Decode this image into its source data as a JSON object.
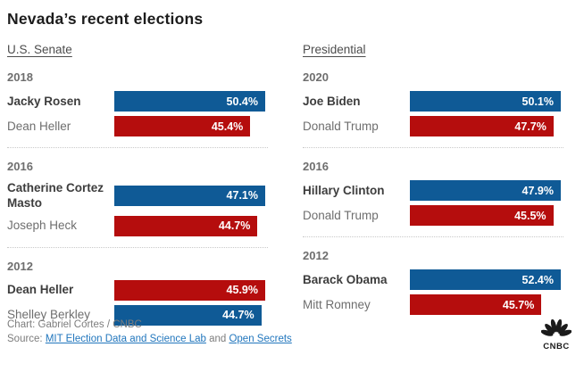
{
  "title": "Nevada’s recent elections",
  "colors": {
    "dem": "#0f5a96",
    "rep": "#b50d0d"
  },
  "columns": [
    {
      "header": "U.S. Senate",
      "races": [
        {
          "year": "2018",
          "candidates": [
            {
              "name": "Jacky Rosen",
              "value": 50.4,
              "label": "50.4%",
              "party": "dem",
              "winner": true
            },
            {
              "name": "Dean Heller",
              "value": 45.4,
              "label": "45.4%",
              "party": "rep",
              "winner": false
            }
          ]
        },
        {
          "year": "2016",
          "candidates": [
            {
              "name": "Catherine Cortez Masto",
              "value": 47.1,
              "label": "47.1%",
              "party": "dem",
              "winner": true
            },
            {
              "name": "Joseph Heck",
              "value": 44.7,
              "label": "44.7%",
              "party": "rep",
              "winner": false
            }
          ]
        },
        {
          "year": "2012",
          "candidates": [
            {
              "name": "Dean Heller",
              "value": 45.9,
              "label": "45.9%",
              "party": "rep",
              "winner": true
            },
            {
              "name": "Shelley Berkley",
              "value": 44.7,
              "label": "44.7%",
              "party": "dem",
              "winner": false
            }
          ]
        }
      ]
    },
    {
      "header": "Presidential",
      "races": [
        {
          "year": "2020",
          "candidates": [
            {
              "name": "Joe Biden",
              "value": 50.1,
              "label": "50.1%",
              "party": "dem",
              "winner": true
            },
            {
              "name": "Donald Trump",
              "value": 47.7,
              "label": "47.7%",
              "party": "rep",
              "winner": false
            }
          ]
        },
        {
          "year": "2016",
          "candidates": [
            {
              "name": "Hillary Clinton",
              "value": 47.9,
              "label": "47.9%",
              "party": "dem",
              "winner": true
            },
            {
              "name": "Donald Trump",
              "value": 45.5,
              "label": "45.5%",
              "party": "rep",
              "winner": false
            }
          ]
        },
        {
          "year": "2012",
          "candidates": [
            {
              "name": "Barack Obama",
              "value": 52.4,
              "label": "52.4%",
              "party": "dem",
              "winner": true
            },
            {
              "name": "Mitt Romney",
              "value": 45.7,
              "label": "45.7%",
              "party": "rep",
              "winner": false
            }
          ]
        }
      ]
    }
  ],
  "footer": {
    "credit": "Chart: Gabriel Cortes / CNBC",
    "source_prefix": "Source: ",
    "source_link1": "MIT Election Data and Science Lab",
    "source_joiner": " and ",
    "source_link2": "Open Secrets",
    "logo_text": "CNBC"
  },
  "chart_data": [
    {
      "type": "bar",
      "orientation": "horizontal",
      "title": "U.S. Senate",
      "unit": "%",
      "bar_scaling": "each bar scaled relative to its race winner (winner bar full width)",
      "groups": [
        {
          "year": "2018",
          "bars": [
            {
              "label": "Jacky Rosen",
              "value": 50.4,
              "party": "Democratic",
              "color": "#0f5a96",
              "winner": true
            },
            {
              "label": "Dean Heller",
              "value": 45.4,
              "party": "Republican",
              "color": "#b50d0d",
              "winner": false
            }
          ]
        },
        {
          "year": "2016",
          "bars": [
            {
              "label": "Catherine Cortez Masto",
              "value": 47.1,
              "party": "Democratic",
              "color": "#0f5a96",
              "winner": true
            },
            {
              "label": "Joseph Heck",
              "value": 44.7,
              "party": "Republican",
              "color": "#b50d0d",
              "winner": false
            }
          ]
        },
        {
          "year": "2012",
          "bars": [
            {
              "label": "Dean Heller",
              "value": 45.9,
              "party": "Republican",
              "color": "#b50d0d",
              "winner": true
            },
            {
              "label": "Shelley Berkley",
              "value": 44.7,
              "party": "Democratic",
              "color": "#0f5a96",
              "winner": false
            }
          ]
        }
      ]
    },
    {
      "type": "bar",
      "orientation": "horizontal",
      "title": "Presidential",
      "unit": "%",
      "bar_scaling": "each bar scaled relative to its race winner (winner bar full width)",
      "groups": [
        {
          "year": "2020",
          "bars": [
            {
              "label": "Joe Biden",
              "value": 50.1,
              "party": "Democratic",
              "color": "#0f5a96",
              "winner": true
            },
            {
              "label": "Donald Trump",
              "value": 47.7,
              "party": "Republican",
              "color": "#b50d0d",
              "winner": false
            }
          ]
        },
        {
          "year": "2016",
          "bars": [
            {
              "label": "Hillary Clinton",
              "value": 47.9,
              "party": "Democratic",
              "color": "#0f5a96",
              "winner": true
            },
            {
              "label": "Donald Trump",
              "value": 45.5,
              "party": "Republican",
              "color": "#b50d0d",
              "winner": false
            }
          ]
        },
        {
          "year": "2012",
          "bars": [
            {
              "label": "Barack Obama",
              "value": 52.4,
              "party": "Democratic",
              "color": "#0f5a96",
              "winner": true
            },
            {
              "label": "Mitt Romney",
              "value": 45.7,
              "party": "Republican",
              "color": "#b50d0d",
              "winner": false
            }
          ]
        }
      ]
    }
  ]
}
